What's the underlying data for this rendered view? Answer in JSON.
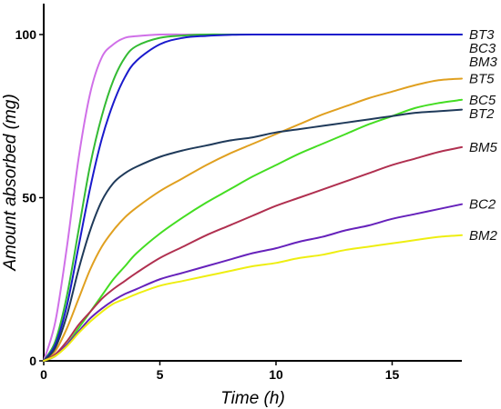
{
  "chart_data": {
    "type": "line",
    "xlabel": "Time (h)",
    "ylabel": "Amount absorbed (mg)",
    "xlim": [
      0,
      18
    ],
    "ylim": [
      0,
      100
    ],
    "xticks": [
      0,
      5,
      10,
      15
    ],
    "yticks": [
      0,
      50,
      100
    ],
    "x": [
      0,
      0.5,
      1,
      1.5,
      2,
      2.5,
      3,
      3.5,
      4,
      5,
      6,
      7,
      8,
      9,
      10,
      11,
      12,
      13,
      14,
      15,
      16,
      17,
      18
    ],
    "series": [
      {
        "name": "BT3",
        "color": "#d070e8",
        "values": [
          0,
          12,
          35,
          62,
          82,
          93,
          97,
          99,
          99.5,
          100,
          100,
          100,
          100,
          100,
          100,
          100,
          100,
          100,
          100,
          100,
          100,
          100,
          100
        ]
      },
      {
        "name": "BC3",
        "color": "#33bb33",
        "values": [
          0,
          6,
          20,
          40,
          60,
          75,
          86,
          93,
          96.5,
          99,
          99.7,
          100,
          100,
          100,
          100,
          100,
          100,
          100,
          100,
          100,
          100,
          100,
          100
        ]
      },
      {
        "name": "BM3",
        "color": "#1a1acc",
        "values": [
          0,
          5,
          17,
          35,
          53,
          68,
          79,
          87,
          92,
          97,
          99,
          99.6,
          99.9,
          100,
          100,
          100,
          100,
          100,
          100,
          100,
          100,
          100,
          100
        ]
      },
      {
        "name": "BT5",
        "color": "#e0a020",
        "values": [
          0,
          3,
          10,
          19,
          28,
          35,
          40,
          44,
          47,
          52,
          56,
          60,
          63.5,
          66.5,
          69.5,
          72.5,
          75.5,
          78,
          80.5,
          82.5,
          84.5,
          86,
          86.5
        ]
      },
      {
        "name": "BC5",
        "color": "#44dd22",
        "values": [
          0,
          1.5,
          5,
          10,
          15,
          20,
          25,
          29,
          33,
          39,
          44,
          48.5,
          52.5,
          56.5,
          60,
          63.5,
          66.5,
          69.5,
          72.5,
          75,
          77.5,
          79,
          80
        ]
      },
      {
        "name": "BT2",
        "color": "#1f3a5a",
        "values": [
          0,
          4,
          14,
          28,
          40,
          49,
          54.5,
          57.5,
          59.5,
          62.5,
          64.5,
          66,
          67.5,
          68.5,
          70,
          71,
          72,
          73,
          74,
          75,
          76,
          76.5,
          77
        ]
      },
      {
        "name": "BM5",
        "color": "#b03050",
        "values": [
          0,
          2,
          6,
          11,
          15,
          19,
          22,
          24.5,
          27,
          31.5,
          35,
          38.5,
          41.5,
          44.5,
          47.5,
          50,
          52.5,
          55,
          57.5,
          60,
          62,
          64,
          65.5
        ]
      },
      {
        "name": "BC2",
        "color": "#6622bb",
        "values": [
          0,
          1.5,
          5,
          9,
          13,
          16,
          18.5,
          20.5,
          22,
          25,
          27,
          29,
          31,
          33,
          34.5,
          36.5,
          38,
          40,
          41.5,
          43.5,
          45,
          46.5,
          48
        ]
      },
      {
        "name": "BM2",
        "color": "#eeee11",
        "values": [
          0,
          1.5,
          4.5,
          8.5,
          12,
          15,
          17.5,
          19,
          20.5,
          23,
          24.5,
          26,
          27.5,
          29,
          30,
          31.5,
          32.5,
          34,
          35,
          36,
          37,
          38,
          38.5
        ]
      }
    ],
    "labels": [
      {
        "text": "BT3",
        "series": "BT3",
        "at": 100
      },
      {
        "text": "BC3",
        "series": "BC3",
        "at": 100
      },
      {
        "text": "BM3",
        "series": "BM3",
        "at": 100
      },
      {
        "text": "BT5",
        "series": "BT5",
        "at": 86.5
      },
      {
        "text": "BC5",
        "series": "BC5",
        "at": 80
      },
      {
        "text": "BT2",
        "series": "BT2",
        "at": 77
      },
      {
        "text": "BM5",
        "series": "BM5",
        "at": 65.5
      },
      {
        "text": "BC2",
        "series": "BC2",
        "at": 48
      },
      {
        "text": "BM2",
        "series": "BM2",
        "at": 38.5
      }
    ],
    "grid": false,
    "legend": "none"
  }
}
